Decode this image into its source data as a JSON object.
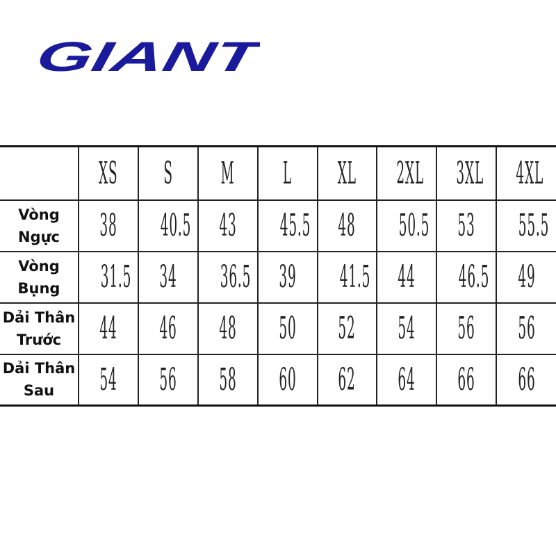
{
  "logo": {
    "text": "GIANT",
    "color": "#1a1a9c"
  },
  "table": {
    "sizes": [
      "XS",
      "S",
      "M",
      "L",
      "XL",
      "2XL",
      "3XL",
      "4XL"
    ],
    "rows": [
      {
        "label": "Vòng\nNgực",
        "values": [
          "38",
          "40.5",
          "43",
          "45.5",
          "48",
          "50.5",
          "53",
          "55.5"
        ]
      },
      {
        "label": "Vòng\nBụng",
        "values": [
          "31.5",
          "34",
          "36.5",
          "39",
          "41.5",
          "44",
          "46.5",
          "49"
        ]
      },
      {
        "label": "Dải Thân\nTrước",
        "values": [
          "44",
          "46",
          "48",
          "50",
          "52",
          "54",
          "56",
          "56"
        ]
      },
      {
        "label": "Dải Thân\nSau",
        "values": [
          "54",
          "56",
          "58",
          "60",
          "62",
          "64",
          "66",
          "66"
        ]
      }
    ]
  }
}
